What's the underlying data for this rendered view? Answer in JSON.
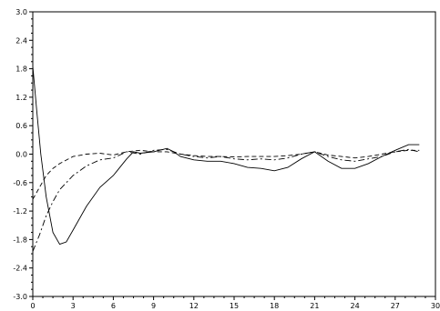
{
  "chart_data": {
    "type": "line",
    "title": "",
    "xlabel": "",
    "ylabel": "",
    "xlim": [
      0,
      30
    ],
    "ylim": [
      -3.0,
      3.0
    ],
    "grid": false,
    "x_ticks": [
      "0",
      "3",
      "6",
      "9",
      "12",
      "15",
      "18",
      "21",
      "24",
      "27",
      "30"
    ],
    "y_ticks": [
      "3.0",
      "2.4",
      "1.8",
      "1.2",
      "0.6",
      "0.0",
      "-0.6",
      "-1.2",
      "-1.8",
      "-2.4",
      "-3.0"
    ],
    "series": [
      {
        "style": "solid",
        "x": [
          0,
          0.3,
          0.6,
          1.0,
          1.5,
          2.0,
          2.5,
          3.0,
          4.0,
          5.0,
          6.0,
          7.0,
          7.5,
          8.0,
          9.0,
          10.0,
          10.5,
          11.0,
          12.0,
          13.0,
          14.0,
          15.0,
          16.0,
          17.0,
          18.0,
          19.0,
          20.0,
          21.0,
          22.0,
          23.0,
          24.0,
          25.0,
          26.0,
          27.0,
          28.0,
          28.8
        ],
        "y": [
          1.85,
          0.9,
          0.0,
          -0.9,
          -1.65,
          -1.9,
          -1.85,
          -1.6,
          -1.1,
          -0.7,
          -0.45,
          -0.1,
          0.05,
          0.02,
          0.05,
          0.12,
          0.05,
          -0.05,
          -0.12,
          -0.15,
          -0.15,
          -0.2,
          -0.28,
          -0.3,
          -0.35,
          -0.28,
          -0.1,
          0.05,
          -0.15,
          -0.3,
          -0.3,
          -0.2,
          -0.05,
          0.08,
          0.2,
          0.2
        ]
      },
      {
        "style": "dash-dot",
        "x": [
          0,
          0.5,
          1.0,
          1.5,
          2.0,
          3.0,
          4.0,
          5.0,
          6.0,
          7.0,
          8.0,
          9.0,
          10.0,
          11.0,
          12.0,
          13.0,
          14.0,
          15.0,
          16.0,
          17.0,
          18.0,
          19.0,
          20.0,
          21.0,
          22.0,
          23.0,
          24.0,
          25.0,
          26.0,
          27.0,
          28.0,
          28.8
        ],
        "y": [
          -2.05,
          -1.7,
          -1.3,
          -1.0,
          -0.75,
          -0.45,
          -0.25,
          -0.12,
          -0.08,
          0.05,
          0.0,
          0.08,
          0.1,
          0.0,
          -0.05,
          -0.08,
          -0.05,
          -0.1,
          -0.12,
          -0.1,
          -0.12,
          -0.08,
          0.0,
          0.05,
          -0.05,
          -0.12,
          -0.15,
          -0.1,
          -0.05,
          0.05,
          0.1,
          0.05
        ]
      },
      {
        "style": "dashed",
        "x": [
          0,
          0.5,
          1.0,
          1.5,
          2.0,
          3.0,
          4.0,
          5.0,
          6.0,
          7.0,
          8.0,
          9.0,
          10.0,
          11.0,
          12.0,
          13.0,
          14.0,
          15.0,
          16.0,
          17.0,
          18.0,
          19.0,
          20.0,
          21.0,
          22.0,
          23.0,
          24.0,
          25.0,
          26.0,
          27.0,
          28.0,
          28.8
        ],
        "y": [
          -0.95,
          -0.7,
          -0.45,
          -0.3,
          -0.2,
          -0.05,
          0.0,
          0.02,
          -0.02,
          0.05,
          0.08,
          0.05,
          0.05,
          0.0,
          -0.03,
          -0.05,
          -0.05,
          -0.06,
          -0.05,
          -0.05,
          -0.05,
          -0.03,
          0.0,
          0.05,
          -0.02,
          -0.05,
          -0.08,
          -0.05,
          0.0,
          0.05,
          0.08,
          0.08
        ]
      }
    ]
  }
}
